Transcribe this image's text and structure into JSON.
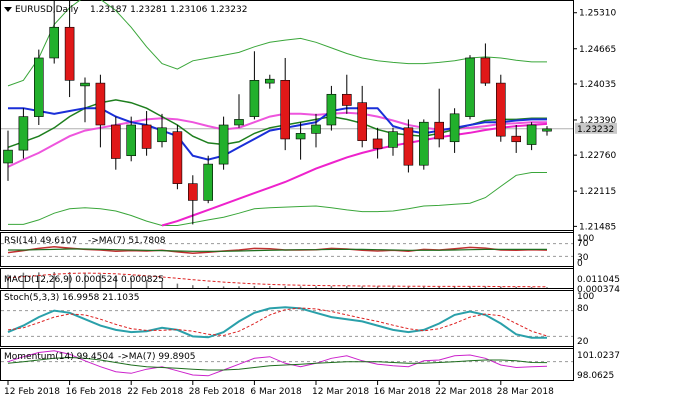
{
  "header": {
    "symbol": "EURUSD,Daily",
    "ohlc": "1.23187 1.23281 1.23106 1.23232"
  },
  "colors": {
    "bull": "#22b02c",
    "bear": "#e01818",
    "wick": "#000000",
    "bb": "#3aa63a",
    "ma_fast": "#1a2fd8",
    "ma_mid": "#1e7f1e",
    "ma_pink": "#ee55dd",
    "ma_magenta": "#ee22cc",
    "price_box": "#c8c8c8",
    "rsi_line": "#c03030",
    "rsi_ma": "#1e6e1e",
    "stoch_main": "#2aa0aa",
    "stoch_signal": "#dd2222",
    "mom_line": "#cc22cc",
    "mom_ma": "#1e6e1e",
    "macd_bar": "#777777",
    "macd_signal": "#dd2222"
  },
  "chart_data": {
    "type": "candlestick",
    "title": "EURUSD,Daily",
    "y_ticks": [
      "1.25310",
      "1.24665",
      "1.24035",
      "1.23390",
      "1.22760",
      "1.22115",
      "1.21485"
    ],
    "y_tick_values": [
      1.2531,
      1.24665,
      1.24035,
      1.2339,
      1.2276,
      1.22115,
      1.21485
    ],
    "ylim": [
      1.2142,
      1.2552
    ],
    "current_price": "1.23232",
    "current_value": 1.23232,
    "x_ticks": [
      "12 Feb 2018",
      "16 Feb 2018",
      "22 Feb 2018",
      "28 Feb 2018",
      "6 Mar 2018",
      "12 Mar 2018",
      "16 Mar 2018",
      "22 Mar 2018",
      "28 Mar 2018"
    ],
    "x_tick_index": [
      0,
      4,
      8,
      12,
      16,
      20,
      24,
      28,
      32
    ],
    "candles": [
      {
        "o": 1.2262,
        "h": 1.232,
        "l": 1.223,
        "c": 1.2285
      },
      {
        "o": 1.2285,
        "h": 1.236,
        "l": 1.227,
        "c": 1.2345
      },
      {
        "o": 1.2345,
        "h": 1.2465,
        "l": 1.233,
        "c": 1.245
      },
      {
        "o": 1.245,
        "h": 1.2565,
        "l": 1.244,
        "c": 1.2505
      },
      {
        "o": 1.2505,
        "h": 1.256,
        "l": 1.238,
        "c": 1.241
      },
      {
        "o": 1.24,
        "h": 1.2415,
        "l": 1.2335,
        "c": 1.2405
      },
      {
        "o": 1.2405,
        "h": 1.242,
        "l": 1.229,
        "c": 1.233
      },
      {
        "o": 1.233,
        "h": 1.2345,
        "l": 1.225,
        "c": 1.227
      },
      {
        "o": 1.2275,
        "h": 1.2345,
        "l": 1.2265,
        "c": 1.233
      },
      {
        "o": 1.233,
        "h": 1.2355,
        "l": 1.2275,
        "c": 1.2288
      },
      {
        "o": 1.23,
        "h": 1.235,
        "l": 1.229,
        "c": 1.2325
      },
      {
        "o": 1.2318,
        "h": 1.233,
        "l": 1.2215,
        "c": 1.2225
      },
      {
        "o": 1.2225,
        "h": 1.224,
        "l": 1.2152,
        "c": 1.2195
      },
      {
        "o": 1.2195,
        "h": 1.2275,
        "l": 1.219,
        "c": 1.226
      },
      {
        "o": 1.226,
        "h": 1.2345,
        "l": 1.225,
        "c": 1.233
      },
      {
        "o": 1.233,
        "h": 1.2385,
        "l": 1.2325,
        "c": 1.234
      },
      {
        "o": 1.2345,
        "h": 1.2462,
        "l": 1.234,
        "c": 1.241
      },
      {
        "o": 1.2405,
        "h": 1.242,
        "l": 1.2395,
        "c": 1.2412
      },
      {
        "o": 1.241,
        "h": 1.245,
        "l": 1.2285,
        "c": 1.2305
      },
      {
        "o": 1.2305,
        "h": 1.2335,
        "l": 1.2268,
        "c": 1.2315
      },
      {
        "o": 1.2315,
        "h": 1.235,
        "l": 1.229,
        "c": 1.233
      },
      {
        "o": 1.233,
        "h": 1.24,
        "l": 1.232,
        "c": 1.2385
      },
      {
        "o": 1.2385,
        "h": 1.242,
        "l": 1.235,
        "c": 1.2365
      },
      {
        "o": 1.237,
        "h": 1.24,
        "l": 1.229,
        "c": 1.2302
      },
      {
        "o": 1.2305,
        "h": 1.2325,
        "l": 1.227,
        "c": 1.2288
      },
      {
        "o": 1.229,
        "h": 1.2325,
        "l": 1.2275,
        "c": 1.2318
      },
      {
        "o": 1.2325,
        "h": 1.234,
        "l": 1.2245,
        "c": 1.2258
      },
      {
        "o": 1.2258,
        "h": 1.234,
        "l": 1.225,
        "c": 1.2335
      },
      {
        "o": 1.2335,
        "h": 1.2395,
        "l": 1.229,
        "c": 1.2305
      },
      {
        "o": 1.23,
        "h": 1.236,
        "l": 1.228,
        "c": 1.235
      },
      {
        "o": 1.2345,
        "h": 1.2455,
        "l": 1.234,
        "c": 1.245
      },
      {
        "o": 1.245,
        "h": 1.2476,
        "l": 1.24,
        "c": 1.2405
      },
      {
        "o": 1.2405,
        "h": 1.242,
        "l": 1.23,
        "c": 1.231
      },
      {
        "o": 1.231,
        "h": 1.233,
        "l": 1.228,
        "c": 1.23
      },
      {
        "o": 1.2295,
        "h": 1.2335,
        "l": 1.2285,
        "c": 1.233
      },
      {
        "o": 1.2319,
        "h": 1.2328,
        "l": 1.2311,
        "c": 1.2323
      }
    ],
    "bb_upper": [
      1.24,
      1.241,
      1.245,
      1.251,
      1.254,
      1.256,
      1.2555,
      1.2535,
      1.2505,
      1.247,
      1.244,
      1.243,
      1.2445,
      1.245,
      1.2455,
      1.246,
      1.247,
      1.2478,
      1.2482,
      1.2485,
      1.2478,
      1.2468,
      1.2458,
      1.245,
      1.2445,
      1.2442,
      1.244,
      1.244,
      1.2442,
      1.2445,
      1.245,
      1.2452,
      1.245,
      1.2446,
      1.2443,
      1.2443
    ],
    "bb_lower": [
      1.2152,
      1.2152,
      1.216,
      1.2172,
      1.218,
      1.2182,
      1.218,
      1.2176,
      1.2168,
      1.2158,
      1.215,
      1.215,
      1.2155,
      1.216,
      1.2165,
      1.2172,
      1.218,
      1.2182,
      1.2183,
      1.2184,
      1.2185,
      1.2182,
      1.2178,
      1.2175,
      1.2175,
      1.2176,
      1.218,
      1.2185,
      1.2186,
      1.2188,
      1.219,
      1.22,
      1.222,
      1.224,
      1.2245,
      1.2245
    ],
    "ma_fast": [
      1.236,
      1.236,
      1.2355,
      1.235,
      1.2355,
      1.236,
      1.236,
      1.2345,
      1.2335,
      1.233,
      1.232,
      1.231,
      1.2275,
      1.2268,
      1.2275,
      1.229,
      1.2305,
      1.232,
      1.2325,
      1.233,
      1.2335,
      1.2355,
      1.236,
      1.236,
      1.236,
      1.2328,
      1.232,
      1.2315,
      1.232,
      1.2325,
      1.233,
      1.2335,
      1.2335,
      1.2338,
      1.234,
      1.234
    ],
    "ma_mid": [
      1.229,
      1.23,
      1.231,
      1.2325,
      1.2345,
      1.236,
      1.237,
      1.2375,
      1.237,
      1.236,
      1.2345,
      1.233,
      1.231,
      1.2298,
      1.2295,
      1.23,
      1.2315,
      1.2325,
      1.233,
      1.2335,
      1.234,
      1.2345,
      1.234,
      1.2333,
      1.2322,
      1.2315,
      1.2312,
      1.231,
      1.2315,
      1.2322,
      1.233,
      1.2338,
      1.234,
      1.234,
      1.2342,
      1.2342
    ],
    "ma_pink": [
      1.2255,
      1.2268,
      1.228,
      1.2295,
      1.231,
      1.232,
      1.2325,
      1.233,
      1.2335,
      1.234,
      1.2342,
      1.234,
      1.2335,
      1.2328,
      1.2322,
      1.2325,
      1.2335,
      1.2345,
      1.235,
      1.235,
      1.2348,
      1.235,
      1.2352,
      1.235,
      1.2345,
      1.2338,
      1.233,
      1.2325,
      1.2322,
      1.2323,
      1.2325,
      1.2328,
      1.2332,
      1.2333,
      1.2335,
      1.2335
    ],
    "ma_magenta": [
      null,
      null,
      null,
      null,
      null,
      null,
      null,
      null,
      null,
      null,
      1.215,
      1.2158,
      1.2168,
      1.2178,
      1.2188,
      1.2198,
      1.2208,
      1.2218,
      1.2228,
      1.224,
      1.2252,
      1.2262,
      1.2272,
      1.228,
      1.2287,
      1.2293,
      1.2298,
      1.2303,
      1.2308,
      1.2312,
      1.2316,
      1.2321,
      1.2325,
      1.2328,
      1.233,
      1.2332
    ],
    "indicators": {
      "rsi": {
        "label": "RSI(14) 49.6107",
        "ma_label": "->MA(7) 51.7808",
        "levels": [
          "70",
          "30"
        ],
        "level_values": [
          70,
          30
        ],
        "top_label": "100",
        "bottom_label": "0",
        "ylim": [
          0,
          100
        ],
        "values": [
          42,
          48,
          55,
          60,
          56,
          52,
          50,
          46,
          48,
          47,
          49,
          44,
          40,
          43,
          47,
          50,
          55,
          54,
          50,
          50,
          51,
          55,
          53,
          49,
          47,
          49,
          46,
          52,
          50,
          54,
          58,
          56,
          50,
          49,
          51,
          49.6
        ],
        "ma_values": [
          50,
          50,
          51,
          52,
          53,
          53,
          52,
          51,
          50,
          49,
          48,
          47,
          46,
          46,
          46,
          47,
          48,
          49,
          50,
          51,
          51,
          52,
          52,
          52,
          51,
          50,
          49,
          49,
          49,
          50,
          51,
          52,
          52,
          52,
          52,
          51.8
        ]
      },
      "macd": {
        "label": "MACD(12,26,9) 0.000524 0.000825",
        "top_label": "0.011045",
        "bottom_label": "0.000374",
        "ylim": [
          0.0,
          0.0115
        ],
        "bars": [
          0.0085,
          0.0098,
          0.01,
          0.0102,
          0.0102,
          0.0098,
          0.009,
          0.0078,
          0.0065,
          0.0052,
          0.004,
          0.0028,
          0.0018,
          0.0012,
          0.001,
          0.0011,
          0.0013,
          0.0013,
          0.0012,
          0.0011,
          0.0011,
          0.0012,
          0.0012,
          0.0011,
          0.001,
          0.0009,
          0.0008,
          0.0008,
          0.0008,
          0.0009,
          0.001,
          0.001,
          0.0009,
          0.0007,
          0.0006,
          0.0005
        ],
        "signal": [
          0.0065,
          0.0072,
          0.008,
          0.0088,
          0.0093,
          0.0095,
          0.0094,
          0.0091,
          0.0085,
          0.0078,
          0.007,
          0.0062,
          0.0053,
          0.0045,
          0.0038,
          0.0032,
          0.0027,
          0.0023,
          0.002,
          0.0018,
          0.0016,
          0.0015,
          0.0014,
          0.0013,
          0.0012,
          0.0012,
          0.0011,
          0.0011,
          0.001,
          0.001,
          0.001,
          0.001,
          0.0009,
          0.0009,
          0.0008,
          0.0008
        ]
      },
      "stoch": {
        "label": "Stoch(5,3,3) 16.9958 21.1035",
        "top_label": "100",
        "levels": [
          "80",
          "20"
        ],
        "level_values": [
          80,
          20
        ],
        "bottom_label": "0",
        "ylim": [
          0,
          100
        ],
        "main": [
          30,
          45,
          65,
          80,
          75,
          60,
          45,
          35,
          30,
          32,
          40,
          35,
          20,
          18,
          30,
          55,
          75,
          85,
          88,
          85,
          75,
          65,
          60,
          55,
          45,
          35,
          30,
          35,
          50,
          70,
          78,
          70,
          50,
          25,
          17,
          17
        ],
        "signal": [
          35,
          40,
          52,
          65,
          72,
          70,
          60,
          48,
          38,
          34,
          34,
          36,
          32,
          25,
          22,
          32,
          50,
          70,
          82,
          86,
          84,
          78,
          70,
          62,
          55,
          46,
          38,
          33,
          38,
          50,
          65,
          72,
          68,
          50,
          32,
          21
        ]
      },
      "momentum": {
        "label": "Momentum(14) 99.4504",
        "ma_label": "->MA(7) 99.8905",
        "top_label": "101.0237",
        "bottom_label": "98.0625",
        "ylim": [
          97.8,
          101.4
        ],
        "values": [
          100.0,
          100.6,
          101.1,
          101.3,
          100.9,
          100.1,
          99.4,
          98.8,
          98.6,
          99.1,
          99.4,
          98.9,
          98.4,
          98.3,
          99.0,
          99.7,
          100.4,
          100.6,
          99.8,
          99.4,
          99.8,
          100.4,
          100.7,
          100.1,
          99.7,
          99.5,
          99.4,
          100.1,
          100.2,
          100.7,
          100.8,
          100.4,
          99.6,
          99.3,
          99.4,
          99.45
        ],
        "ma_values": [
          99.8,
          100.0,
          100.2,
          100.4,
          100.5,
          100.4,
          100.2,
          99.9,
          99.6,
          99.4,
          99.3,
          99.2,
          99.1,
          99.0,
          99.0,
          99.1,
          99.3,
          99.5,
          99.6,
          99.7,
          99.8,
          99.9,
          100.0,
          100.0,
          100.0,
          99.9,
          99.8,
          99.8,
          99.9,
          100.0,
          100.1,
          100.2,
          100.2,
          100.1,
          99.9,
          99.89
        ]
      }
    }
  }
}
